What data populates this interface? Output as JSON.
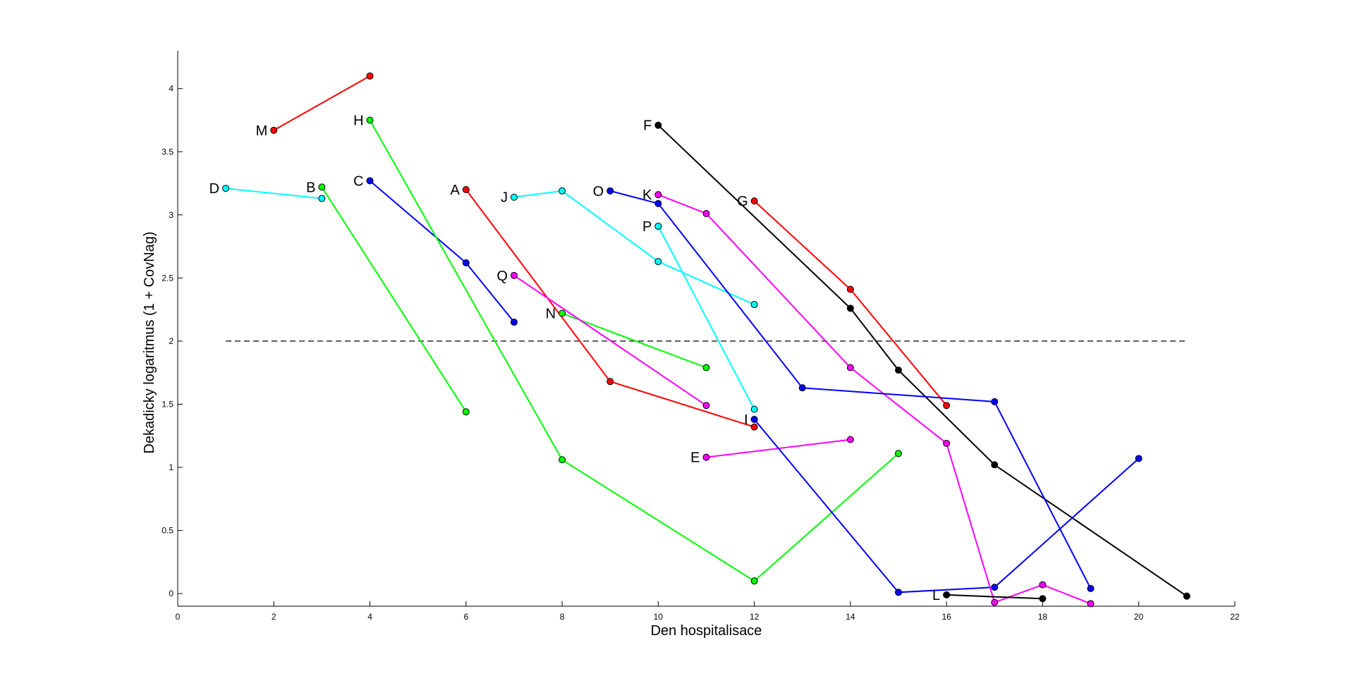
{
  "chart_data": {
    "type": "line",
    "title": "",
    "xlabel": "Den hospitalisace",
    "ylabel": "Dekadicky logaritmus (1 + CovNag)",
    "xlim": [
      0,
      22
    ],
    "ylim": [
      -0.1,
      4.3
    ],
    "xticks": [
      0,
      2,
      4,
      6,
      8,
      10,
      12,
      14,
      16,
      18,
      20,
      22
    ],
    "xtick_labels": [
      "0",
      "2",
      "4",
      "6",
      "8",
      "10",
      "12",
      "14",
      "16",
      "18",
      "20",
      "22"
    ],
    "yticks": [
      0,
      0.5,
      1,
      1.5,
      2,
      2.5,
      3,
      3.5,
      4
    ],
    "ytick_labels": [
      "0",
      "0.5",
      "1",
      "1.5",
      "2",
      "2.5",
      "3",
      "3.5",
      "4"
    ],
    "grid": false,
    "threshold": {
      "y": 2,
      "x_start": 1,
      "x_end": 21,
      "style": "dashed",
      "color": "#000000"
    },
    "series": [
      {
        "name": "A",
        "color": "#ff0000",
        "points": [
          [
            6,
            3.2
          ],
          [
            9,
            1.68
          ],
          [
            12,
            1.32
          ]
        ]
      },
      {
        "name": "B",
        "color": "#00ff00",
        "points": [
          [
            3,
            3.22
          ],
          [
            6,
            1.44
          ]
        ]
      },
      {
        "name": "C",
        "color": "#0000ff",
        "points": [
          [
            4,
            3.27
          ],
          [
            6,
            2.62
          ],
          [
            7,
            2.15
          ]
        ]
      },
      {
        "name": "D",
        "color": "#00ffff",
        "points": [
          [
            1,
            3.21
          ],
          [
            3,
            3.13
          ]
        ]
      },
      {
        "name": "E",
        "color": "#ff00ff",
        "points": [
          [
            11,
            1.08
          ],
          [
            14,
            1.22
          ]
        ]
      },
      {
        "name": "F",
        "color": "#000000",
        "points": [
          [
            10,
            3.71
          ],
          [
            14,
            2.26
          ],
          [
            15,
            1.77
          ],
          [
            17,
            1.02
          ],
          [
            21,
            -0.02
          ]
        ]
      },
      {
        "name": "G",
        "color": "#ff0000",
        "points": [
          [
            12,
            3.11
          ],
          [
            14,
            2.41
          ],
          [
            16,
            1.49
          ]
        ]
      },
      {
        "name": "H",
        "color": "#00ff00",
        "points": [
          [
            4,
            3.75
          ],
          [
            8,
            1.06
          ],
          [
            12,
            0.1
          ],
          [
            15,
            1.11
          ]
        ]
      },
      {
        "name": "I",
        "color": "#0000ff",
        "points": [
          [
            12,
            1.38
          ],
          [
            15,
            0.01
          ],
          [
            17,
            0.05
          ],
          [
            20,
            1.07
          ]
        ]
      },
      {
        "name": "J",
        "color": "#00ffff",
        "points": [
          [
            7,
            3.14
          ],
          [
            8,
            3.19
          ],
          [
            10,
            2.63
          ],
          [
            12,
            2.29
          ]
        ]
      },
      {
        "name": "K",
        "color": "#ff00ff",
        "points": [
          [
            10,
            3.16
          ],
          [
            11,
            3.01
          ],
          [
            14,
            1.79
          ],
          [
            16,
            1.19
          ],
          [
            17,
            -0.07
          ],
          [
            18,
            0.07
          ],
          [
            19,
            -0.08
          ]
        ]
      },
      {
        "name": "L",
        "color": "#000000",
        "points": [
          [
            16,
            -0.01
          ],
          [
            18,
            -0.04
          ]
        ]
      },
      {
        "name": "M",
        "color": "#ff0000",
        "points": [
          [
            2,
            3.67
          ],
          [
            4,
            4.1
          ]
        ]
      },
      {
        "name": "N",
        "color": "#00ff00",
        "points": [
          [
            8,
            2.22
          ],
          [
            11,
            1.79
          ]
        ]
      },
      {
        "name": "O",
        "color": "#0000ff",
        "points": [
          [
            9,
            3.19
          ],
          [
            10,
            3.09
          ],
          [
            13,
            1.63
          ],
          [
            17,
            1.52
          ],
          [
            19,
            0.04
          ]
        ]
      },
      {
        "name": "P",
        "color": "#00ffff",
        "points": [
          [
            10,
            2.91
          ],
          [
            12,
            1.46
          ]
        ]
      },
      {
        "name": "Q",
        "color": "#ff00ff",
        "points": [
          [
            7,
            2.52
          ],
          [
            11,
            1.49
          ]
        ]
      }
    ]
  }
}
